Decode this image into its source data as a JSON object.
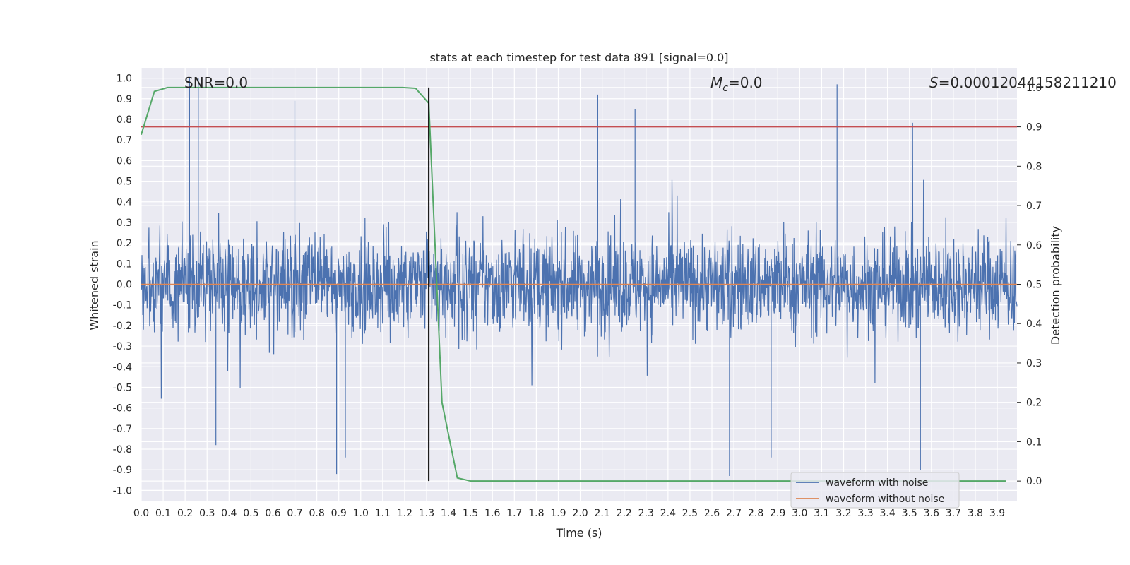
{
  "chart_data": {
    "type": "line",
    "title": "stats at each timestep for test data 891 [signal=0.0]",
    "xlabel": "Time (s)",
    "ylabel_left": "Whitened strain",
    "ylabel_right": "Detection probability",
    "xlim": [
      0.0,
      3.99
    ],
    "ylim_left": [
      -1.05,
      1.05
    ],
    "ylim_right": [
      -0.05,
      1.05
    ],
    "x_ticks": [
      "0.0",
      "0.1",
      "0.2",
      "0.3",
      "0.4",
      "0.5",
      "0.6",
      "0.7",
      "0.8",
      "0.9",
      "1.0",
      "1.1",
      "1.2",
      "1.3",
      "1.4",
      "1.5",
      "1.6",
      "1.7",
      "1.8",
      "1.9",
      "2.0",
      "2.1",
      "2.2",
      "2.3",
      "2.4",
      "2.5",
      "2.6",
      "2.7",
      "2.8",
      "2.9",
      "3.0",
      "3.1",
      "3.2",
      "3.3",
      "3.4",
      "3.5",
      "3.6",
      "3.7",
      "3.8",
      "3.9"
    ],
    "y_ticks_left": [
      "1.0",
      "0.9",
      "0.8",
      "0.7",
      "0.6",
      "0.5",
      "0.4",
      "0.3",
      "0.2",
      "0.1",
      "0.0",
      "-0.1",
      "-0.2",
      "-0.3",
      "-0.4",
      "-0.5",
      "-0.6",
      "-0.7",
      "-0.8",
      "-0.9",
      "-1.0"
    ],
    "y_ticks_right": [
      "1.0",
      "0.9",
      "0.8",
      "0.7",
      "0.6",
      "0.5",
      "0.4",
      "0.3",
      "0.2",
      "0.1",
      "0.0"
    ],
    "annotations": {
      "snr": "SNR=0.0",
      "mc_symbol": "M",
      "mc_sub": "c",
      "mc_value": "=0.0",
      "s_symbol": "S",
      "s_value": "=0.00012044158211210"
    },
    "threshold": {
      "value": 0.9,
      "axis": "right",
      "color": "#c44e52"
    },
    "marker_time": 1.31,
    "grid": true,
    "legend_position": "bottom-right",
    "series": [
      {
        "name": "waveform with noise",
        "axis": "left",
        "color": "#4c72b0",
        "description_values": {
          "sample_range": [
            -0.93,
            1.0
          ],
          "duration_s": 4.0
        },
        "peaks": [
          {
            "x": 0.22,
            "y": 1.0
          },
          {
            "x": 0.26,
            "y": 1.0
          },
          {
            "x": 0.7,
            "y": 0.89
          },
          {
            "x": 2.08,
            "y": 0.92
          },
          {
            "x": 2.25,
            "y": 0.85
          },
          {
            "x": 3.17,
            "y": 0.97
          },
          {
            "x": 0.89,
            "y": -0.92
          },
          {
            "x": 2.68,
            "y": -0.93
          },
          {
            "x": 3.55,
            "y": -0.9
          },
          {
            "x": 0.34,
            "y": -0.78
          },
          {
            "x": 0.93,
            "y": -0.84
          },
          {
            "x": 2.87,
            "y": -0.84
          }
        ]
      },
      {
        "name": "waveform without noise",
        "axis": "left",
        "color": "#dd8452",
        "values_constant": 0.0
      },
      {
        "name": "",
        "axis": "right",
        "color": "#55a868",
        "x": [
          0.0,
          0.06,
          0.12,
          0.19,
          0.25,
          0.5,
          0.75,
          1.0,
          1.19,
          1.25,
          1.31,
          1.37,
          1.44,
          1.5,
          2.0,
          2.5,
          3.0,
          3.5,
          3.94
        ],
        "values": [
          0.88,
          0.99,
          1.0,
          1.0,
          1.0,
          1.0,
          1.0,
          1.0,
          1.0,
          0.998,
          0.96,
          0.2,
          0.008,
          0.0,
          0.0,
          0.0,
          0.0,
          0.0,
          0.0
        ]
      }
    ],
    "legend": [
      {
        "label": "waveform with noise",
        "color": "#4c72b0"
      },
      {
        "label": "waveform without noise",
        "color": "#dd8452"
      }
    ]
  }
}
